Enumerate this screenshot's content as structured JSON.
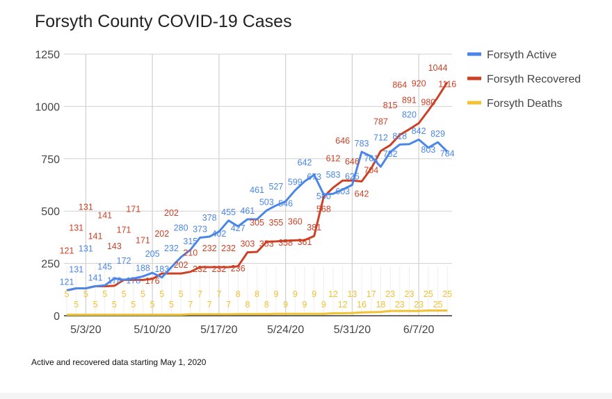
{
  "title": "Forsyth County COVID-19 Cases",
  "caption": "Active and recovered data starting May 1, 2020",
  "chart_data": {
    "type": "line",
    "title": "Forsyth County COVID-19 Cases",
    "xlabel": "",
    "ylabel": "",
    "ylim": [
      0,
      1250
    ],
    "yticks": [
      0,
      250,
      500,
      750,
      1000,
      1250
    ],
    "x_start": "5/1/20",
    "x": [
      "5/1/20",
      "5/2/20",
      "5/3/20",
      "5/4/20",
      "5/5/20",
      "5/6/20",
      "5/7/20",
      "5/8/20",
      "5/9/20",
      "5/10/20",
      "5/11/20",
      "5/12/20",
      "5/13/20",
      "5/14/20",
      "5/15/20",
      "5/16/20",
      "5/17/20",
      "5/18/20",
      "5/19/20",
      "5/20/20",
      "5/21/20",
      "5/22/20",
      "5/23/20",
      "5/24/20",
      "5/25/20",
      "5/26/20",
      "5/27/20",
      "5/28/20",
      "5/29/20",
      "5/30/20",
      "5/31/20",
      "6/1/20",
      "6/2/20",
      "6/3/20",
      "6/4/20",
      "6/5/20",
      "6/6/20",
      "6/7/20",
      "6/8/20",
      "6/9/20",
      "6/10/20"
    ],
    "xtick_labels": [
      "5/3/20",
      "5/10/20",
      "5/17/20",
      "5/24/20",
      "5/31/20",
      "6/7/20"
    ],
    "grid": true,
    "legend": "right",
    "data_labels": true,
    "series": [
      {
        "name": "Forsyth Active",
        "color": "#4a86e8",
        "values": [
          121,
          131,
          131,
          141,
          145,
          178,
          172,
          178,
          188,
          205,
          183,
          232,
          280,
          315,
          373,
          378,
          402,
          455,
          427,
          461,
          461,
          503,
          527,
          546,
          599,
          642,
          673,
          580,
          583,
          603,
          625,
          783,
          761,
          712,
          782,
          818,
          820,
          842,
          803,
          829,
          784
        ]
      },
      {
        "name": "Forsyth Recovered",
        "color": "#cc4125",
        "values": [
          121,
          131,
          131,
          141,
          141,
          143,
          171,
          171,
          171,
          176,
          202,
          202,
          202,
          210,
          232,
          232,
          232,
          232,
          236,
          303,
          305,
          353,
          355,
          358,
          360,
          361,
          381,
          568,
          612,
          646,
          646,
          642,
          704,
          787,
          815,
          864,
          891,
          920,
          980,
          1044,
          1116
        ]
      },
      {
        "name": "Forsyth Deaths",
        "color": "#f1c232",
        "values": [
          5,
          5,
          5,
          5,
          5,
          5,
          5,
          5,
          5,
          5,
          5,
          5,
          5,
          7,
          7,
          7,
          7,
          7,
          8,
          8,
          8,
          8,
          9,
          9,
          9,
          9,
          9,
          9,
          12,
          12,
          13,
          16,
          17,
          18,
          23,
          23,
          23,
          23,
          25,
          25,
          25
        ]
      }
    ]
  }
}
